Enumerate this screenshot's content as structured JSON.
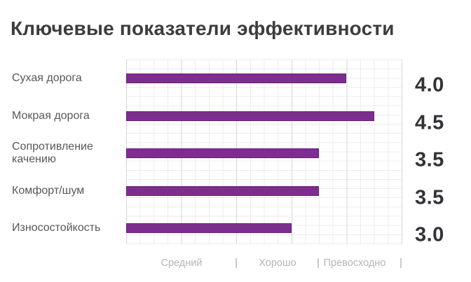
{
  "title": "Ключевые показатели эффективности",
  "colors": {
    "bar": "#7c2d8e",
    "bar_border": "#6a2080",
    "title_text": "#3d3d3f",
    "category_text": "#58585a",
    "value_text": "#323237",
    "axis_text": "#b5b5b6",
    "grid_major": "#d6d6d6",
    "grid_minor": "#ececec",
    "background": "#ffffff"
  },
  "chart_data": {
    "type": "bar",
    "orientation": "horizontal",
    "title": "Ключевые показатели эффективности",
    "categories": [
      "Сухая дорога",
      "Мокрая дорога",
      "Сопротивление качению",
      "Комфорт/шум",
      "Износостойкость"
    ],
    "values": [
      4.0,
      4.5,
      3.5,
      3.5,
      3.0
    ],
    "value_labels": [
      "4.0",
      "4.5",
      "3.5",
      "3.5",
      "3.0"
    ],
    "xlim": [
      0,
      5
    ],
    "x_axis_zone_labels": [
      "Средний",
      "Хорошо",
      "Превосходно"
    ],
    "grid": "major and minor, light gray",
    "legend": "none",
    "bar_color": "#7c2d8e"
  }
}
